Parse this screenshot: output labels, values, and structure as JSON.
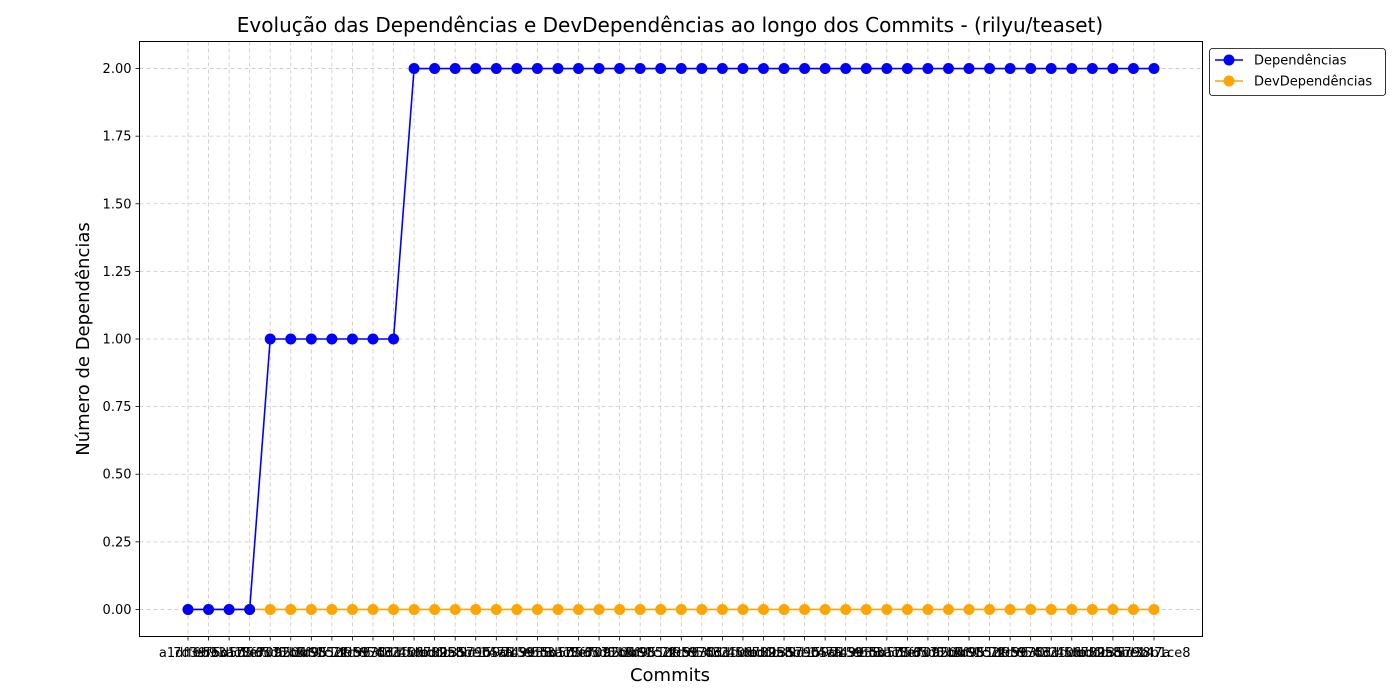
{
  "chart_data": {
    "type": "line",
    "title": "Evolução das Dependências e DevDependências ao longo dos Commits - (rilyu/teaset)",
    "xlabel": "Commits",
    "ylabel": "Número de Dependências",
    "ylim": [
      -0.1,
      2.1
    ],
    "yticks": [
      "0.00",
      "0.25",
      "0.50",
      "0.75",
      "1.00",
      "1.25",
      "1.50",
      "1.75",
      "2.00"
    ],
    "grid": true,
    "legend_position": "outside-top-right",
    "first_commit_label": "a1dff6b9",
    "last_commit_label": "5d38b1ce8",
    "point_count": 48,
    "series": [
      {
        "name": "Dependências",
        "color": "#0000ff",
        "marker": "circle",
        "values": [
          0,
          0,
          0,
          0,
          1,
          1,
          1,
          1,
          1,
          1,
          1,
          2,
          2,
          2,
          2,
          2,
          2,
          2,
          2,
          2,
          2,
          2,
          2,
          2,
          2,
          2,
          2,
          2,
          2,
          2,
          2,
          2,
          2,
          2,
          2,
          2,
          2,
          2,
          2,
          2,
          2,
          2,
          2,
          2,
          2,
          2,
          2,
          2
        ]
      },
      {
        "name": "DevDependências",
        "color": "#ffa500",
        "marker": "circle",
        "values": [
          0,
          0,
          0,
          0,
          0,
          0,
          0,
          0,
          0,
          0,
          0,
          0,
          0,
          0,
          0,
          0,
          0,
          0,
          0,
          0,
          0,
          0,
          0,
          0,
          0,
          0,
          0,
          0,
          0,
          0,
          0,
          0,
          0,
          0,
          0,
          0,
          0,
          0,
          0,
          0,
          0,
          0,
          0,
          0,
          0,
          0,
          0,
          0
        ]
      }
    ]
  }
}
